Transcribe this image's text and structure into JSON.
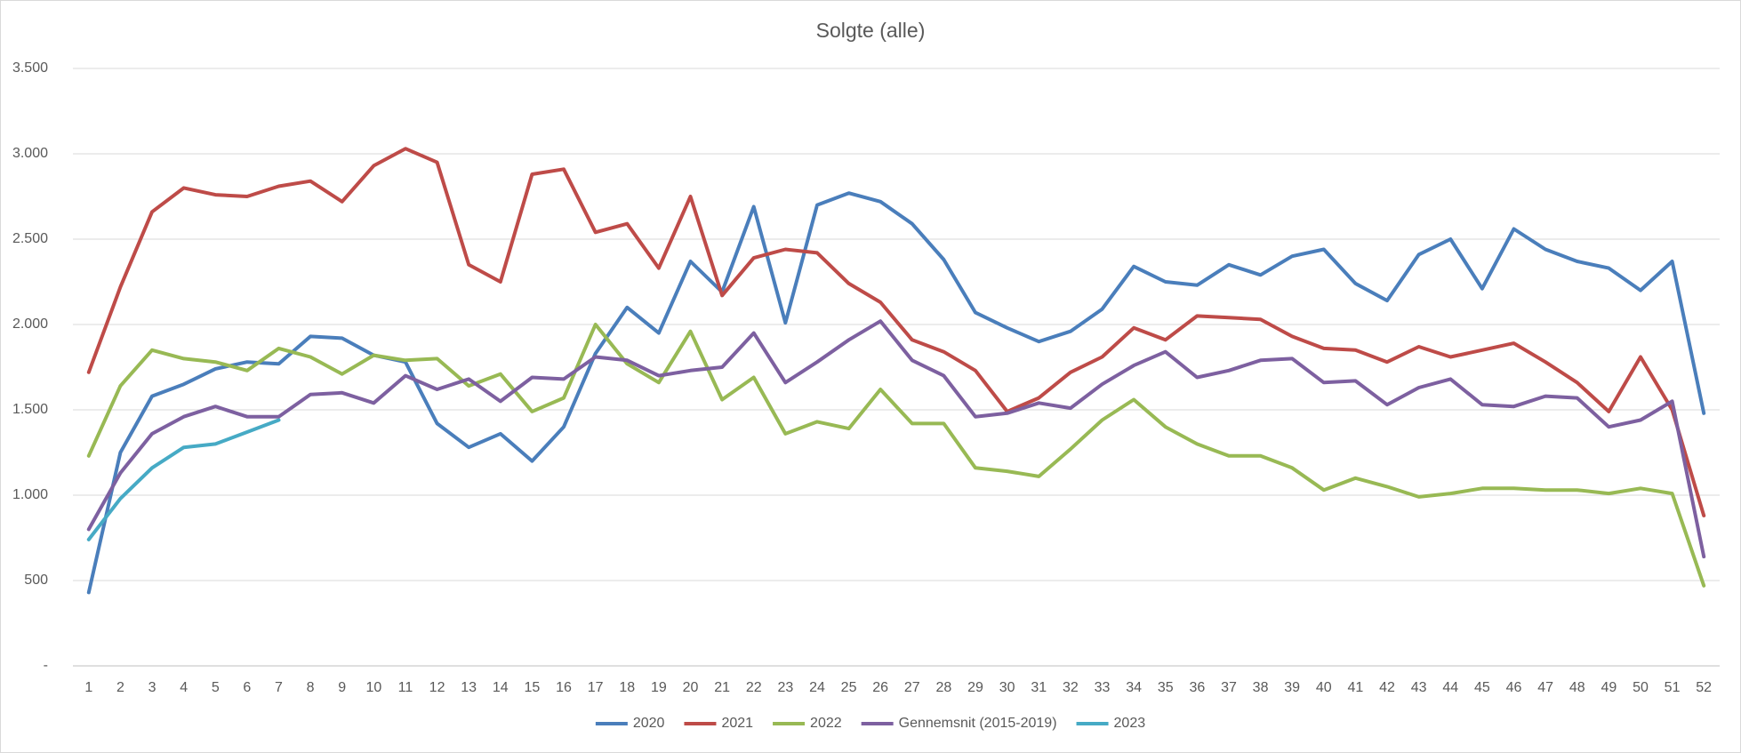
{
  "chart_data": {
    "type": "line",
    "title": "Solgte (alle)",
    "categories": [
      "1",
      "2",
      "3",
      "4",
      "5",
      "6",
      "7",
      "8",
      "9",
      "10",
      "11",
      "12",
      "13",
      "14",
      "15",
      "16",
      "17",
      "18",
      "19",
      "20",
      "21",
      "22",
      "23",
      "24",
      "25",
      "26",
      "27",
      "28",
      "29",
      "30",
      "31",
      "32",
      "33",
      "34",
      "35",
      "36",
      "37",
      "38",
      "39",
      "40",
      "41",
      "42",
      "43",
      "44",
      "45",
      "46",
      "47",
      "48",
      "49",
      "50",
      "51",
      "52"
    ],
    "ylim": [
      0,
      3500
    ],
    "yticks": [
      {
        "value": 0,
        "label": "-"
      },
      500,
      {
        "value": 1000,
        "label": "1.000"
      },
      {
        "value": 1500,
        "label": "1.500"
      },
      {
        "value": 2000,
        "label": "2.000"
      },
      {
        "value": 2500,
        "label": "2.500"
      },
      {
        "value": 3000,
        "label": "3.000"
      },
      {
        "value": 3500,
        "label": "3.500"
      }
    ],
    "grid": true,
    "legend": "bottom",
    "series": [
      {
        "name": "2020",
        "color": "#4a7ebb",
        "values": [
          430,
          1250,
          1580,
          1650,
          1740,
          1780,
          1770,
          1930,
          1920,
          1820,
          1780,
          1420,
          1280,
          1360,
          1200,
          1400,
          1830,
          2100,
          1950,
          2370,
          2190,
          2690,
          2010,
          2700,
          2770,
          2720,
          2590,
          2380,
          2070,
          1980,
          1900,
          1960,
          2090,
          2340,
          2250,
          2230,
          2350,
          2290,
          2400,
          2440,
          2240,
          2140,
          2410,
          2500,
          2210,
          2560,
          2440,
          2370,
          2330,
          2200,
          2370,
          1480
        ]
      },
      {
        "name": "2021",
        "color": "#be4b48",
        "values": [
          1720,
          2220,
          2660,
          2800,
          2760,
          2750,
          2810,
          2840,
          2720,
          2930,
          3030,
          2950,
          2350,
          2250,
          2880,
          2910,
          2540,
          2590,
          2330,
          2750,
          2170,
          2390,
          2440,
          2420,
          2240,
          2130,
          1910,
          1840,
          1730,
          1490,
          1570,
          1720,
          1810,
          1980,
          1910,
          2050,
          2040,
          2030,
          1930,
          1860,
          1850,
          1780,
          1870,
          1810,
          1850,
          1890,
          1780,
          1660,
          1490,
          1810,
          1500,
          880
        ]
      },
      {
        "name": "2022",
        "color": "#98b954",
        "values": [
          1230,
          1640,
          1850,
          1800,
          1780,
          1730,
          1860,
          1810,
          1710,
          1820,
          1790,
          1800,
          1640,
          1710,
          1490,
          1570,
          2000,
          1770,
          1660,
          1960,
          1560,
          1690,
          1360,
          1430,
          1390,
          1620,
          1420,
          1420,
          1160,
          1140,
          1110,
          1270,
          1440,
          1560,
          1400,
          1300,
          1230,
          1230,
          1160,
          1030,
          1100,
          1050,
          990,
          1010,
          1040,
          1040,
          1030,
          1030,
          1010,
          1040,
          1010,
          470
        ]
      },
      {
        "name": "Gennemsnit (2015-2019)",
        "color": "#7d60a0",
        "values": [
          800,
          1130,
          1360,
          1460,
          1520,
          1460,
          1460,
          1590,
          1600,
          1540,
          1700,
          1620,
          1680,
          1550,
          1690,
          1680,
          1810,
          1790,
          1700,
          1730,
          1750,
          1950,
          1660,
          1780,
          1910,
          2020,
          1790,
          1700,
          1460,
          1480,
          1540,
          1510,
          1650,
          1760,
          1840,
          1690,
          1730,
          1790,
          1800,
          1660,
          1670,
          1530,
          1630,
          1680,
          1530,
          1520,
          1580,
          1570,
          1400,
          1440,
          1550,
          640
        ]
      },
      {
        "name": "2023",
        "color": "#46aac5",
        "values": [
          740,
          980,
          1160,
          1280,
          1300,
          1370,
          1440,
          null,
          null,
          null,
          null,
          null,
          null,
          null,
          null,
          null,
          null,
          null,
          null,
          null,
          null,
          null,
          null,
          null,
          null,
          null,
          null,
          null,
          null,
          null,
          null,
          null,
          null,
          null,
          null,
          null,
          null,
          null,
          null,
          null,
          null,
          null,
          null,
          null,
          null,
          null,
          null,
          null,
          null,
          null,
          null,
          null
        ]
      }
    ]
  }
}
